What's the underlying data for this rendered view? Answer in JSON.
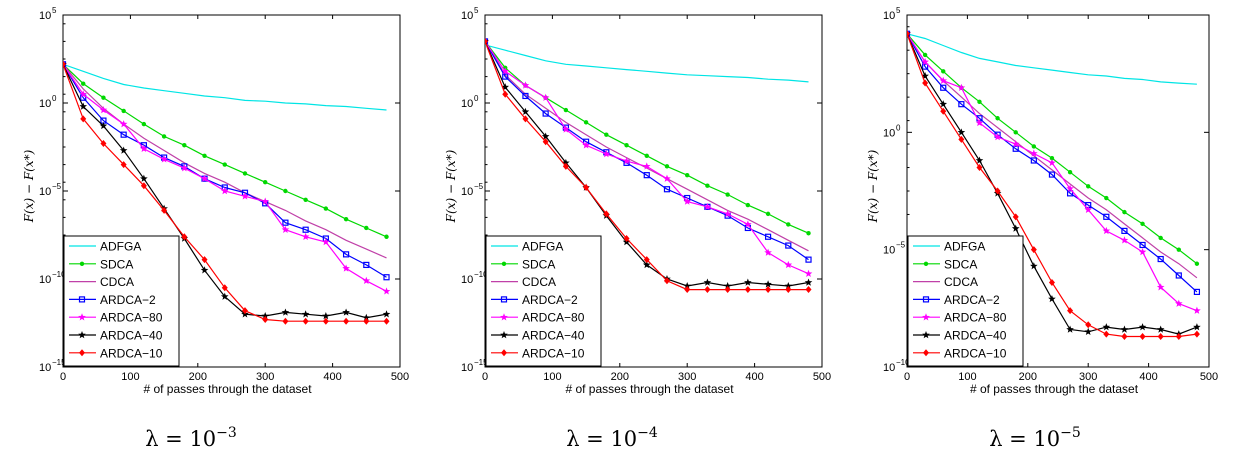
{
  "chart_data": [
    {
      "type": "line",
      "caption": "λ = 10^−3",
      "caption_base": "λ = 10",
      "caption_exp": "−3",
      "ylabel": "F(x) − F(x*)",
      "xlabel": "# of passes through the dataset",
      "xlim": [
        0,
        500
      ],
      "ylim_exp": [
        -15,
        5
      ],
      "y_log": true,
      "xticks": [
        "0",
        "100",
        "200",
        "300",
        "400",
        "500"
      ],
      "yticks": [
        {
          "exp": -15,
          "label": "10",
          "sup": "−15"
        },
        {
          "exp": -10,
          "label": "10",
          "sup": "−10"
        },
        {
          "exp": -5,
          "label": "10",
          "sup": "−5"
        },
        {
          "exp": 0,
          "label": "10",
          "sup": "0"
        },
        {
          "exp": 5,
          "label": "10",
          "sup": "5"
        }
      ],
      "legend_position": "bottom-left",
      "series": [
        {
          "name": "ADFGA",
          "color": "#00e5e5",
          "marker": "none",
          "x": [
            0,
            30,
            60,
            90,
            120,
            150,
            180,
            210,
            240,
            270,
            300,
            330,
            360,
            390,
            420,
            450,
            480
          ],
          "log10_y": [
            2.2,
            1.8,
            1.4,
            1.05,
            0.85,
            0.7,
            0.55,
            0.4,
            0.3,
            0.15,
            0.1,
            0,
            -0.05,
            -0.15,
            -0.2,
            -0.3,
            -0.4
          ]
        },
        {
          "name": "SDCA",
          "color": "#00d800",
          "marker": "dot",
          "x": [
            0,
            30,
            60,
            90,
            120,
            150,
            180,
            210,
            240,
            270,
            300,
            330,
            360,
            390,
            420,
            450,
            480
          ],
          "log10_y": [
            2.2,
            1.1,
            0.3,
            -0.45,
            -1.2,
            -1.9,
            -2.4,
            -3.0,
            -3.5,
            -4.0,
            -4.5,
            -5.0,
            -5.5,
            -6.0,
            -6.6,
            -7.1,
            -7.6
          ]
        },
        {
          "name": "CDCA",
          "color": "#c040a8",
          "marker": "none",
          "x": [
            0,
            30,
            60,
            90,
            120,
            150,
            180,
            210,
            240,
            270,
            300,
            330,
            360,
            390,
            420,
            450,
            480
          ],
          "log10_y": [
            2.2,
            0.8,
            -0.3,
            -1.2,
            -2.0,
            -2.7,
            -3.4,
            -4.0,
            -4.5,
            -5.1,
            -5.6,
            -6.1,
            -6.7,
            -7.2,
            -7.8,
            -8.3,
            -8.8
          ]
        },
        {
          "name": "ARDCA−2",
          "color": "#0000ff",
          "marker": "square",
          "x": [
            0,
            30,
            60,
            90,
            120,
            150,
            180,
            210,
            240,
            270,
            300,
            330,
            360,
            390,
            420,
            450,
            480
          ],
          "log10_y": [
            2.2,
            0.3,
            -1.0,
            -1.8,
            -2.4,
            -3.1,
            -3.6,
            -4.3,
            -4.8,
            -5.1,
            -5.7,
            -6.8,
            -7.2,
            -7.7,
            -8.6,
            -9.2,
            -9.9
          ]
        },
        {
          "name": "ARDCA−80",
          "color": "#ff00ff",
          "marker": "star",
          "x": [
            0,
            30,
            60,
            90,
            120,
            150,
            180,
            210,
            240,
            270,
            300,
            330,
            360,
            390,
            420,
            450,
            480
          ],
          "log10_y": [
            2.2,
            0.5,
            -0.4,
            -1.2,
            -2.6,
            -3.2,
            -3.7,
            -4.3,
            -5.0,
            -5.3,
            -5.6,
            -7.2,
            -7.6,
            -7.9,
            -9.4,
            -10.1,
            -10.7
          ]
        },
        {
          "name": "ARDCA−40",
          "color": "#000000",
          "marker": "star",
          "x": [
            0,
            30,
            60,
            90,
            120,
            150,
            180,
            210,
            240,
            270,
            300,
            330,
            360,
            390,
            420,
            450,
            480
          ],
          "log10_y": [
            2.2,
            -0.2,
            -1.3,
            -2.7,
            -4.3,
            -6.0,
            -7.7,
            -9.5,
            -11.0,
            -12.0,
            -12.1,
            -11.9,
            -12.0,
            -12.1,
            -11.9,
            -12.2,
            -12.0
          ]
        },
        {
          "name": "ARDCA−10",
          "color": "#ff0000",
          "marker": "diamond",
          "x": [
            0,
            30,
            60,
            90,
            120,
            150,
            180,
            210,
            240,
            270,
            300,
            330,
            360,
            390,
            420,
            450,
            480
          ],
          "log10_y": [
            2.2,
            -0.9,
            -2.3,
            -3.5,
            -4.7,
            -6.1,
            -7.6,
            -8.9,
            -10.5,
            -11.8,
            -12.3,
            -12.4,
            -12.4,
            -12.4,
            -12.4,
            -12.4,
            -12.4
          ]
        }
      ]
    },
    {
      "type": "line",
      "caption": "λ = 10^−4",
      "caption_base": "λ = 10",
      "caption_exp": "−4",
      "ylabel": "F(x) − F(x*)",
      "xlabel": "# of passes through the dataset",
      "xlim": [
        0,
        500
      ],
      "ylim_exp": [
        -15,
        5
      ],
      "y_log": true,
      "xticks": [
        "0",
        "100",
        "200",
        "300",
        "400",
        "500"
      ],
      "yticks": [
        {
          "exp": -15,
          "label": "10",
          "sup": "−15"
        },
        {
          "exp": -10,
          "label": "10",
          "sup": "−10"
        },
        {
          "exp": -5,
          "label": "10",
          "sup": "−5"
        },
        {
          "exp": 0,
          "label": "10",
          "sup": "0"
        },
        {
          "exp": 5,
          "label": "10",
          "sup": "5"
        }
      ],
      "legend_position": "bottom-left",
      "series": [
        {
          "name": "ADFGA",
          "color": "#00e5e5",
          "marker": "none",
          "x": [
            0,
            30,
            60,
            90,
            120,
            150,
            180,
            210,
            240,
            270,
            300,
            330,
            360,
            390,
            420,
            450,
            480
          ],
          "log10_y": [
            3.3,
            3.0,
            2.7,
            2.4,
            2.2,
            2.1,
            2.0,
            1.9,
            1.8,
            1.7,
            1.6,
            1.55,
            1.5,
            1.45,
            1.35,
            1.3,
            1.2
          ]
        },
        {
          "name": "SDCA",
          "color": "#00d800",
          "marker": "dot",
          "x": [
            0,
            30,
            60,
            90,
            120,
            150,
            180,
            210,
            240,
            270,
            300,
            330,
            360,
            390,
            420,
            450,
            480
          ],
          "log10_y": [
            3.5,
            2.0,
            1.0,
            0.3,
            -0.4,
            -1.1,
            -1.8,
            -2.4,
            -3.0,
            -3.6,
            -4.1,
            -4.7,
            -5.2,
            -5.8,
            -6.3,
            -6.9,
            -7.4
          ]
        },
        {
          "name": "CDCA",
          "color": "#c040a8",
          "marker": "none",
          "x": [
            0,
            30,
            60,
            90,
            120,
            150,
            180,
            210,
            240,
            270,
            300,
            330,
            360,
            390,
            420,
            450,
            480
          ],
          "log10_y": [
            3.5,
            1.6,
            0.5,
            -0.3,
            -1.1,
            -1.8,
            -2.5,
            -3.1,
            -3.7,
            -4.3,
            -4.9,
            -5.5,
            -6.1,
            -6.6,
            -7.2,
            -7.8,
            -8.4
          ]
        },
        {
          "name": "ARDCA−2",
          "color": "#0000ff",
          "marker": "square",
          "x": [
            0,
            30,
            60,
            90,
            120,
            150,
            180,
            210,
            240,
            270,
            300,
            330,
            360,
            390,
            420,
            450,
            480
          ],
          "log10_y": [
            3.5,
            1.5,
            0.4,
            -0.6,
            -1.4,
            -2.2,
            -2.8,
            -3.4,
            -4.1,
            -4.9,
            -5.4,
            -5.9,
            -6.4,
            -7.1,
            -7.6,
            -8.1,
            -8.9
          ]
        },
        {
          "name": "ARDCA−80",
          "color": "#ff00ff",
          "marker": "star",
          "x": [
            0,
            30,
            60,
            90,
            120,
            150,
            180,
            210,
            240,
            270,
            300,
            330,
            360,
            390,
            420,
            450,
            480
          ],
          "log10_y": [
            3.5,
            1.8,
            1.0,
            0.3,
            -1.5,
            -2.4,
            -2.9,
            -3.3,
            -3.6,
            -4.3,
            -5.6,
            -5.9,
            -6.3,
            -6.9,
            -8.5,
            -9.2,
            -9.7
          ]
        },
        {
          "name": "ARDCA−40",
          "color": "#000000",
          "marker": "star",
          "x": [
            0,
            30,
            60,
            90,
            120,
            150,
            180,
            210,
            240,
            270,
            300,
            330,
            360,
            390,
            420,
            450,
            480
          ],
          "log10_y": [
            3.5,
            0.9,
            -0.5,
            -1.9,
            -3.4,
            -4.8,
            -6.4,
            -7.9,
            -9.2,
            -10.0,
            -10.4,
            -10.2,
            -10.4,
            -10.2,
            -10.3,
            -10.4,
            -10.2
          ]
        },
        {
          "name": "ARDCA−10",
          "color": "#ff0000",
          "marker": "diamond",
          "x": [
            0,
            30,
            60,
            90,
            120,
            150,
            180,
            210,
            240,
            270,
            300,
            330,
            360,
            390,
            420,
            450,
            480
          ],
          "log10_y": [
            3.5,
            0.5,
            -0.9,
            -2.2,
            -3.6,
            -4.8,
            -6.3,
            -7.7,
            -8.9,
            -10.1,
            -10.6,
            -10.6,
            -10.6,
            -10.6,
            -10.6,
            -10.6,
            -10.6
          ]
        }
      ]
    },
    {
      "type": "line",
      "caption": "λ = 10^−5",
      "caption_base": "λ = 10",
      "caption_exp": "−5",
      "ylabel": "F(x) − F(x*)",
      "xlabel": "# of passes through the dataset",
      "xlim": [
        0,
        500
      ],
      "ylim_exp": [
        -10,
        5
      ],
      "y_log": true,
      "xticks": [
        "0",
        "100",
        "200",
        "300",
        "400",
        "500"
      ],
      "yticks": [
        {
          "exp": -10,
          "label": "10",
          "sup": "−10"
        },
        {
          "exp": -5,
          "label": "10",
          "sup": "−5"
        },
        {
          "exp": 0,
          "label": "10",
          "sup": "0"
        },
        {
          "exp": 5,
          "label": "10",
          "sup": "5"
        }
      ],
      "legend_position": "bottom-left",
      "series": [
        {
          "name": "ADFGA",
          "color": "#00e5e5",
          "marker": "none",
          "x": [
            0,
            30,
            60,
            90,
            120,
            150,
            180,
            210,
            240,
            270,
            300,
            330,
            360,
            390,
            420,
            450,
            480
          ],
          "log10_y": [
            4.2,
            4.0,
            3.7,
            3.4,
            3.15,
            3.0,
            2.85,
            2.75,
            2.65,
            2.55,
            2.45,
            2.4,
            2.3,
            2.25,
            2.15,
            2.1,
            2.05
          ]
        },
        {
          "name": "SDCA",
          "color": "#00d800",
          "marker": "dot",
          "x": [
            0,
            30,
            60,
            90,
            120,
            150,
            180,
            210,
            240,
            270,
            300,
            330,
            360,
            390,
            420,
            450,
            480
          ],
          "log10_y": [
            4.2,
            3.3,
            2.6,
            1.9,
            1.3,
            0.6,
            0.0,
            -0.6,
            -1.1,
            -1.7,
            -2.3,
            -2.8,
            -3.4,
            -3.9,
            -4.5,
            -5.0,
            -5.6
          ]
        },
        {
          "name": "CDCA",
          "color": "#c040a8",
          "marker": "none",
          "x": [
            0,
            30,
            60,
            90,
            120,
            150,
            180,
            210,
            240,
            270,
            300,
            330,
            360,
            390,
            420,
            450,
            480
          ],
          "log10_y": [
            4.2,
            3.0,
            2.2,
            1.5,
            0.8,
            0.2,
            -0.4,
            -1.0,
            -1.6,
            -2.2,
            -2.8,
            -3.3,
            -3.9,
            -4.5,
            -5.1,
            -5.6,
            -6.2
          ]
        },
        {
          "name": "ARDCA−2",
          "color": "#0000ff",
          "marker": "square",
          "x": [
            0,
            30,
            60,
            90,
            120,
            150,
            180,
            210,
            240,
            270,
            300,
            330,
            360,
            390,
            420,
            450,
            480
          ],
          "log10_y": [
            4.2,
            2.8,
            1.9,
            1.2,
            0.6,
            -0.1,
            -0.7,
            -1.2,
            -1.8,
            -2.6,
            -3.1,
            -3.6,
            -4.2,
            -4.8,
            -5.4,
            -6.1,
            -6.8
          ]
        },
        {
          "name": "ARDCA−80",
          "color": "#ff00ff",
          "marker": "star",
          "x": [
            0,
            30,
            60,
            90,
            120,
            150,
            180,
            210,
            240,
            270,
            300,
            330,
            360,
            390,
            420,
            450,
            480
          ],
          "log10_y": [
            4.2,
            3.0,
            2.2,
            1.9,
            0.4,
            -0.2,
            -0.5,
            -0.9,
            -1.3,
            -2.4,
            -3.3,
            -4.2,
            -4.6,
            -5.1,
            -6.6,
            -7.3,
            -7.6
          ]
        },
        {
          "name": "ARDCA−40",
          "color": "#000000",
          "marker": "star",
          "x": [
            0,
            30,
            60,
            90,
            120,
            150,
            180,
            210,
            240,
            270,
            300,
            330,
            360,
            390,
            420,
            450,
            480
          ],
          "log10_y": [
            4.2,
            2.4,
            1.2,
            0.0,
            -1.2,
            -2.6,
            -4.1,
            -5.7,
            -7.1,
            -8.4,
            -8.5,
            -8.3,
            -8.4,
            -8.3,
            -8.4,
            -8.6,
            -8.3
          ]
        },
        {
          "name": "ARDCA−10",
          "color": "#ff0000",
          "marker": "diamond",
          "x": [
            0,
            30,
            60,
            90,
            120,
            150,
            180,
            210,
            240,
            270,
            300,
            330,
            360,
            390,
            420,
            450,
            480
          ],
          "log10_y": [
            4.2,
            2.1,
            0.9,
            -0.3,
            -1.5,
            -2.5,
            -3.6,
            -5.0,
            -6.4,
            -7.6,
            -8.2,
            -8.6,
            -8.7,
            -8.7,
            -8.7,
            -8.7,
            -8.6
          ]
        }
      ]
    }
  ]
}
